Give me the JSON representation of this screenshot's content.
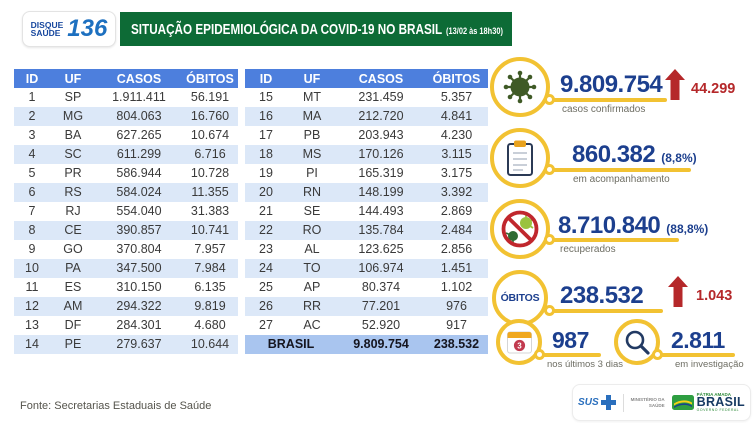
{
  "header": {
    "logo_line1": "DISQUE",
    "logo_line2": "SAÚDE",
    "logo_number": "136",
    "title": "SITUAÇÃO EPIDEMIOLÓGICA DA COVID-19 NO BRASIL",
    "datetime": "(13/02 às 18h30)"
  },
  "table": {
    "columns": [
      "ID",
      "UF",
      "CASOS",
      "ÓBITOS"
    ],
    "left_rows": [
      [
        "1",
        "SP",
        "1.911.411",
        "56.191"
      ],
      [
        "2",
        "MG",
        "804.063",
        "16.760"
      ],
      [
        "3",
        "BA",
        "627.265",
        "10.674"
      ],
      [
        "4",
        "SC",
        "611.299",
        "6.716"
      ],
      [
        "5",
        "PR",
        "586.944",
        "10.728"
      ],
      [
        "6",
        "RS",
        "584.024",
        "11.355"
      ],
      [
        "7",
        "RJ",
        "554.040",
        "31.383"
      ],
      [
        "8",
        "CE",
        "390.857",
        "10.741"
      ],
      [
        "9",
        "GO",
        "370.804",
        "7.957"
      ],
      [
        "10",
        "PA",
        "347.500",
        "7.984"
      ],
      [
        "11",
        "ES",
        "310.150",
        "6.135"
      ],
      [
        "12",
        "AM",
        "294.322",
        "9.819"
      ],
      [
        "13",
        "DF",
        "284.301",
        "4.680"
      ],
      [
        "14",
        "PE",
        "279.637",
        "10.644"
      ]
    ],
    "right_rows": [
      [
        "15",
        "MT",
        "231.459",
        "5.357"
      ],
      [
        "16",
        "MA",
        "212.720",
        "4.841"
      ],
      [
        "17",
        "PB",
        "203.943",
        "4.230"
      ],
      [
        "18",
        "MS",
        "170.126",
        "3.115"
      ],
      [
        "19",
        "PI",
        "165.319",
        "3.175"
      ],
      [
        "20",
        "RN",
        "148.199",
        "3.392"
      ],
      [
        "21",
        "SE",
        "144.493",
        "2.869"
      ],
      [
        "22",
        "RO",
        "135.784",
        "2.484"
      ],
      [
        "23",
        "AL",
        "123.625",
        "2.856"
      ],
      [
        "24",
        "TO",
        "106.974",
        "1.451"
      ],
      [
        "25",
        "AP",
        "80.374",
        "1.102"
      ],
      [
        "26",
        "RR",
        "77.201",
        "976"
      ],
      [
        "27",
        "AC",
        "52.920",
        "917"
      ]
    ],
    "total_label": "BRASIL",
    "total_casos": "9.809.754",
    "total_obitos": "238.532"
  },
  "stats": {
    "confirmed": {
      "value": "9.809.754",
      "delta": "44.299",
      "label": "casos confirmados"
    },
    "monitoring": {
      "value": "860.382",
      "pct": "(8,8%)",
      "label": "em acompanhamento"
    },
    "recovered": {
      "value": "8.710.840",
      "pct": "(88,8%)",
      "label": "recuperados"
    },
    "deaths": {
      "badge": "ÓBITOS",
      "value": "238.532",
      "delta": "1.043"
    },
    "last3days": {
      "value": "987",
      "label": "nos últimos 3 dias",
      "calendar_badge": "3"
    },
    "investigation": {
      "value": "2.811",
      "label": "em investigação"
    }
  },
  "footer": {
    "source": "Fonte: Secretarias Estaduais de Saúde",
    "sus": "SUS",
    "ministry_line1": "MINISTÉRIO DA",
    "ministry_line2": "SAÚDE",
    "patria_top": "PÁTRIA AMADA",
    "patria_brasil": "BRASIL",
    "patria_gov": "GOVERNO FEDERAL"
  },
  "colors": {
    "header_green": "#0d6b36",
    "table_header_blue": "#4d7fdd",
    "row_alt_blue": "#dce8f8",
    "total_row_blue": "#a9c5ef",
    "value_navy": "#1c3f8e",
    "delta_red": "#b5282a",
    "gold": "#f2c232",
    "virus_green": "#3f5a26"
  },
  "chart_data": {
    "type": "table",
    "title": "SITUAÇÃO EPIDEMIOLÓGICA DA COVID-19 NO BRASIL (13/02 às 18h30)",
    "columns": [
      "ID",
      "UF",
      "CASOS",
      "ÓBITOS"
    ],
    "rows": [
      [
        1,
        "SP",
        1911411,
        56191
      ],
      [
        2,
        "MG",
        804063,
        16760
      ],
      [
        3,
        "BA",
        627265,
        10674
      ],
      [
        4,
        "SC",
        611299,
        6716
      ],
      [
        5,
        "PR",
        586944,
        10728
      ],
      [
        6,
        "RS",
        584024,
        11355
      ],
      [
        7,
        "RJ",
        554040,
        31383
      ],
      [
        8,
        "CE",
        390857,
        10741
      ],
      [
        9,
        "GO",
        370804,
        7957
      ],
      [
        10,
        "PA",
        347500,
        7984
      ],
      [
        11,
        "ES",
        310150,
        6135
      ],
      [
        12,
        "AM",
        294322,
        9819
      ],
      [
        13,
        "DF",
        284301,
        4680
      ],
      [
        14,
        "PE",
        279637,
        10644
      ],
      [
        15,
        "MT",
        231459,
        5357
      ],
      [
        16,
        "MA",
        212720,
        4841
      ],
      [
        17,
        "PB",
        203943,
        4230
      ],
      [
        18,
        "MS",
        170126,
        3115
      ],
      [
        19,
        "PI",
        165319,
        3175
      ],
      [
        20,
        "RN",
        148199,
        3392
      ],
      [
        21,
        "SE",
        144493,
        2869
      ],
      [
        22,
        "RO",
        135784,
        2484
      ],
      [
        23,
        "AL",
        123625,
        2856
      ],
      [
        24,
        "TO",
        106974,
        1451
      ],
      [
        25,
        "AP",
        80374,
        1102
      ],
      [
        26,
        "RR",
        77201,
        976
      ],
      [
        27,
        "AC",
        52920,
        917
      ]
    ],
    "total": {
      "label": "BRASIL",
      "casos": 9809754,
      "obitos": 238532
    },
    "summary": {
      "casos_confirmados": 9809754,
      "novos_casos": 44299,
      "em_acompanhamento": 860382,
      "em_acompanhamento_pct": "8,8%",
      "recuperados": 8710840,
      "recuperados_pct": "88,8%",
      "obitos": 238532,
      "novos_obitos": 1043,
      "obitos_ultimos_3_dias": 987,
      "em_investigacao": 2811
    }
  }
}
